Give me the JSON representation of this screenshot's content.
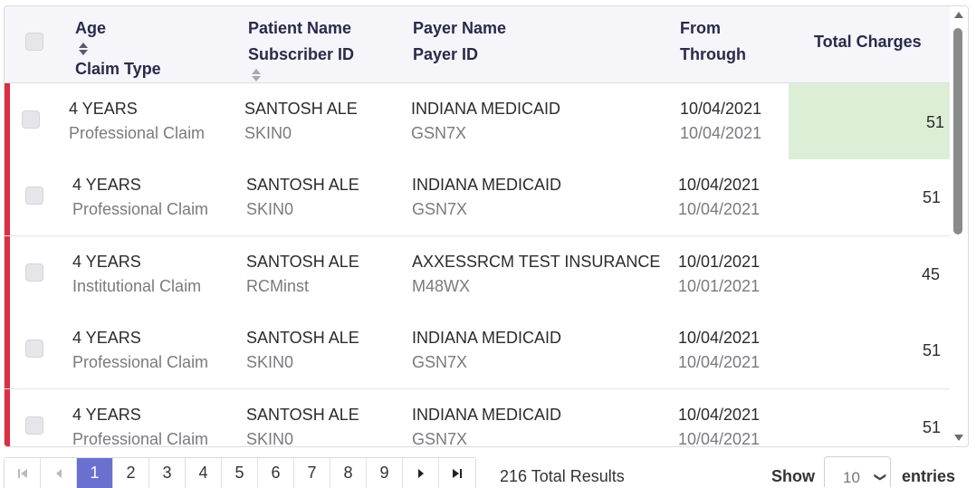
{
  "header": {
    "age": "Age",
    "claim_type": "Claim Type",
    "patient_name": "Patient Name",
    "subscriber_id": "Subscriber ID",
    "payer_name": "Payer Name",
    "payer_id": "Payer ID",
    "from": "From",
    "through": "Through",
    "total_charges": "Total Charges"
  },
  "rows": [
    {
      "age": "4 YEARS",
      "claim_type": "Professional Claim",
      "patient": "SANTOSH ALE",
      "subscriber": "SKIN0",
      "payer": "INDIANA MEDICAID",
      "payer_id": "GSN7X",
      "from": "10/04/2021",
      "through": "10/04/2021",
      "charges": "51"
    },
    {
      "age": "4 YEARS",
      "claim_type": "Professional Claim",
      "patient": "SANTOSH ALE",
      "subscriber": "SKIN0",
      "payer": "INDIANA MEDICAID",
      "payer_id": "GSN7X",
      "from": "10/04/2021",
      "through": "10/04/2021",
      "charges": "51"
    },
    {
      "age": "4 YEARS",
      "claim_type": "Institutional Claim",
      "patient": "SANTOSH ALE",
      "subscriber": "RCMinst",
      "payer": "AXXESSRCM TEST INSURANCE",
      "payer_id": "M48WX",
      "from": "10/01/2021",
      "through": "10/01/2021",
      "charges": "45"
    },
    {
      "age": "4 YEARS",
      "claim_type": "Professional Claim",
      "patient": "SANTOSH ALE",
      "subscriber": "SKIN0",
      "payer": "INDIANA MEDICAID",
      "payer_id": "GSN7X",
      "from": "10/04/2021",
      "through": "10/04/2021",
      "charges": "51"
    },
    {
      "age": "4 YEARS",
      "claim_type": "Professional Claim",
      "patient": "SANTOSH ALE",
      "subscriber": "SKIN0",
      "payer": "INDIANA MEDICAID",
      "payer_id": "GSN7X",
      "from": "10/04/2021",
      "through": "10/04/2021",
      "charges": "51"
    }
  ],
  "pagination": {
    "pages": [
      "1",
      "2",
      "3",
      "4",
      "5",
      "6",
      "7",
      "8",
      "9"
    ],
    "active_page": "1",
    "total_results": "216 Total Results",
    "show_label": "Show",
    "entries_value": "10",
    "entries_label": "entries"
  },
  "colors": {
    "flag": "#dc2e45",
    "active_page": "#6a70cf",
    "highlight_cell": "#dcefd6"
  },
  "icons": {
    "first_page": "first-page-icon",
    "prev_page": "prev-page-icon",
    "next_page": "next-page-icon",
    "last_page": "last-page-icon",
    "sort": "sort-icon"
  }
}
